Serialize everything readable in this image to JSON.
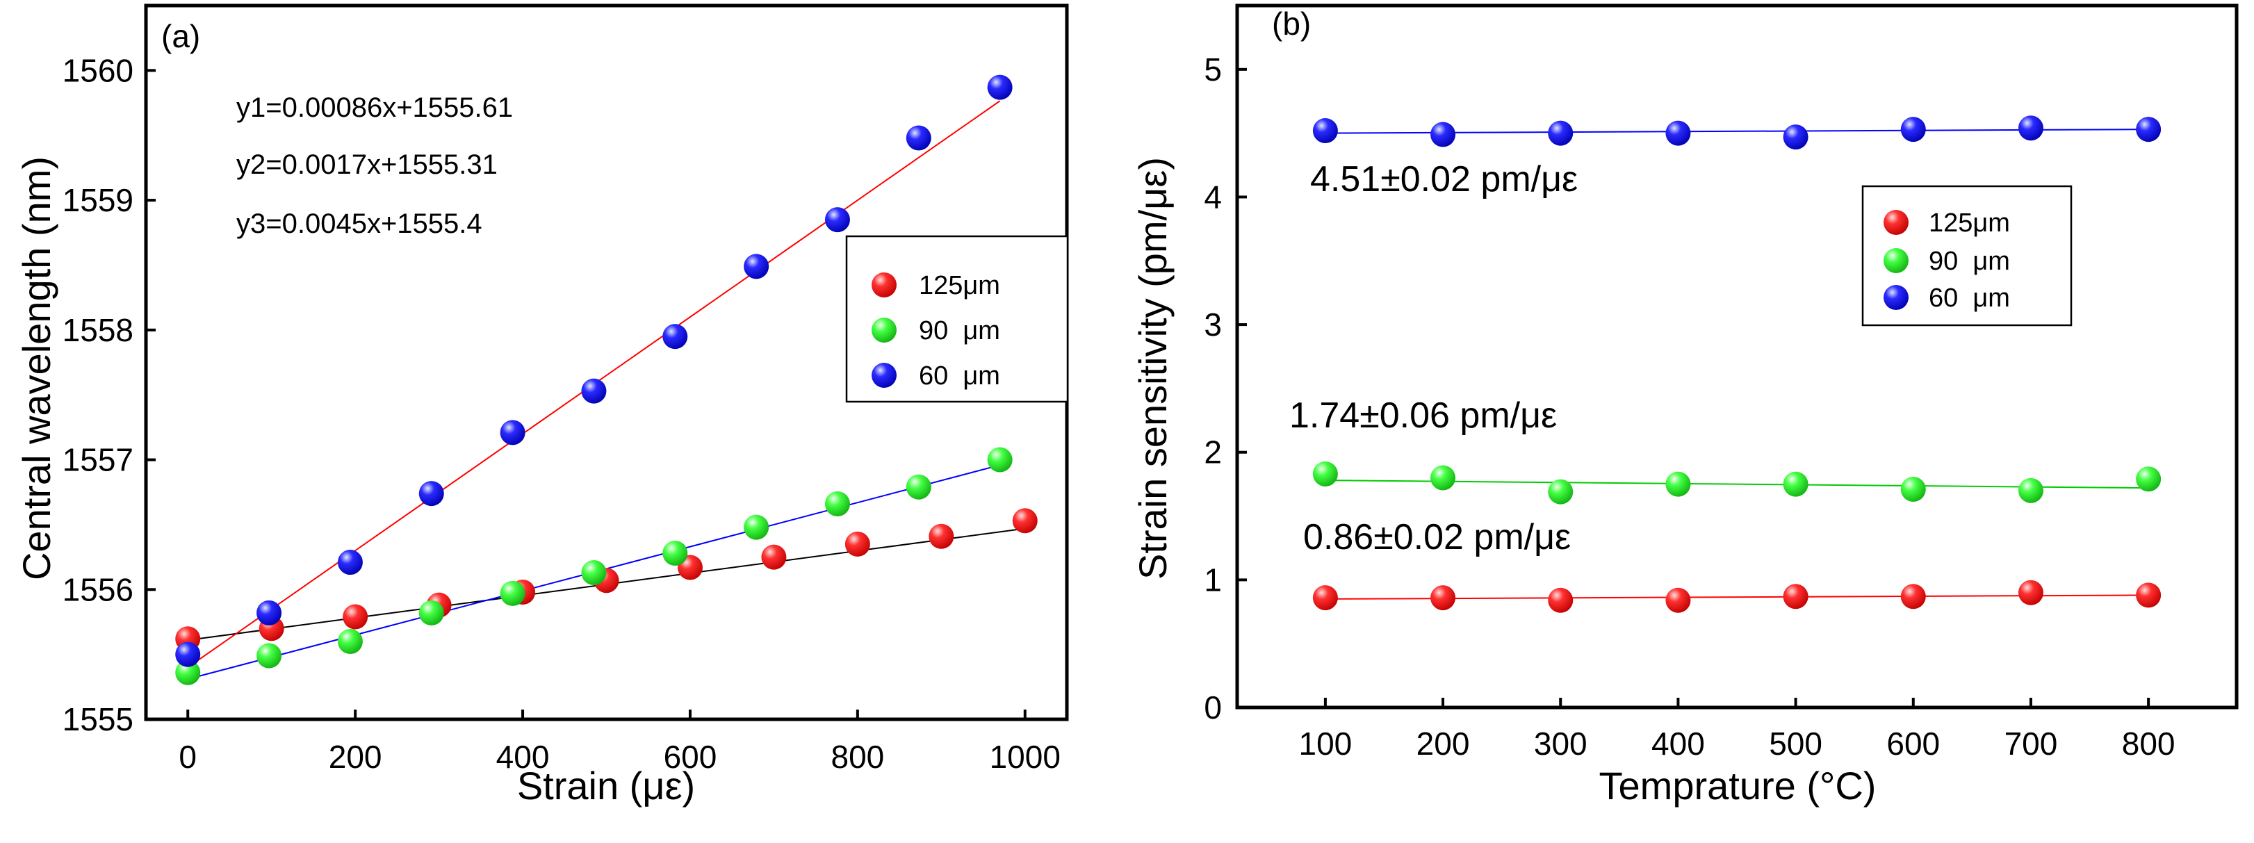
{
  "colors": {
    "125um": "#ff1a1a",
    "90um": "#22ee22",
    "60um": "#1a1aff"
  },
  "chart_data": [
    {
      "panel": "(a)",
      "type": "scatter",
      "xlabel": "Strain (με)",
      "ylabel": "Central wavelength (nm)",
      "xlim": [
        -50,
        1050
      ],
      "ylim": [
        1555,
        1560.5
      ],
      "xticks": [
        0,
        200,
        400,
        600,
        800,
        1000
      ],
      "yticks": [
        1555,
        1556,
        1557,
        1558,
        1559,
        1560
      ],
      "equations": [
        "y1=0.00086x+1555.61",
        "y2=0.0017x+1555.31",
        "y3=0.0045x+1555.4"
      ],
      "legend": {
        "placement": "right",
        "entries": [
          "125μm",
          "90  μm",
          "60  μm"
        ]
      },
      "series": [
        {
          "name": "125μm",
          "color_key": "125um",
          "fit": {
            "slope": 0.00086,
            "intercept": 1555.61,
            "color": "#000000",
            "x_range": [
              0,
              1000
            ]
          },
          "points": [
            [
              0,
              1555.62
            ],
            [
              100,
              1555.7
            ],
            [
              200,
              1555.79
            ],
            [
              300,
              1555.88
            ],
            [
              400,
              1555.98
            ],
            [
              500,
              1556.07
            ],
            [
              600,
              1556.17
            ],
            [
              700,
              1556.25
            ],
            [
              800,
              1556.35
            ],
            [
              900,
              1556.41
            ],
            [
              1000,
              1556.53
            ]
          ]
        },
        {
          "name": "90  μm",
          "color_key": "90um",
          "fit": {
            "slope": 0.0017,
            "intercept": 1555.31,
            "color": "#0000ff",
            "x_range": [
              0,
              970
            ]
          },
          "points": [
            [
              0,
              1555.36
            ],
            [
              97,
              1555.49
            ],
            [
              194,
              1555.6
            ],
            [
              291,
              1555.82
            ],
            [
              388,
              1555.97
            ],
            [
              485,
              1556.13
            ],
            [
              582,
              1556.28
            ],
            [
              679,
              1556.48
            ],
            [
              776,
              1556.66
            ],
            [
              873,
              1556.79
            ],
            [
              970,
              1557.0
            ]
          ]
        },
        {
          "name": "60  μm",
          "color_key": "60um",
          "fit": {
            "slope": 0.0045,
            "intercept": 1555.4,
            "color": "#ff0000",
            "x_range": [
              0,
              970
            ]
          },
          "points": [
            [
              0,
              1555.5
            ],
            [
              97,
              1555.82
            ],
            [
              194,
              1556.21
            ],
            [
              291,
              1556.74
            ],
            [
              388,
              1557.21
            ],
            [
              485,
              1557.53
            ],
            [
              582,
              1557.95
            ],
            [
              679,
              1558.49
            ],
            [
              776,
              1558.85
            ],
            [
              873,
              1559.48
            ],
            [
              970,
              1559.87
            ]
          ]
        }
      ]
    },
    {
      "panel": "(b)",
      "type": "scatter",
      "xlabel": "Temprature (°C)",
      "ylabel": "Strain sensitivity (pm/με)",
      "xlim": [
        25,
        875
      ],
      "ylim": [
        0,
        5.5
      ],
      "xticks": [
        100,
        200,
        300,
        400,
        500,
        600,
        700,
        800
      ],
      "yticks": [
        0,
        1,
        2,
        3,
        4,
        5
      ],
      "annotations": [
        "4.51±0.02 pm/με",
        "1.74±0.06 pm/με",
        "0.86±0.02 pm/με"
      ],
      "legend": {
        "placement": "right",
        "entries": [
          "125μm",
          "90  μm",
          "60  μm"
        ]
      },
      "series": [
        {
          "name": "125μm",
          "color_key": "125um",
          "fit": {
            "start": 0.85,
            "end": 0.88,
            "color": "#ff0000"
          },
          "points": [
            [
              100,
              0.86
            ],
            [
              200,
              0.86
            ],
            [
              300,
              0.84
            ],
            [
              400,
              0.84
            ],
            [
              500,
              0.87
            ],
            [
              600,
              0.87
            ],
            [
              700,
              0.9
            ],
            [
              800,
              0.88
            ]
          ]
        },
        {
          "name": "90  μm",
          "color_key": "90um",
          "fit": {
            "start": 1.78,
            "end": 1.72,
            "color": "#00cc00"
          },
          "points": [
            [
              100,
              1.83
            ],
            [
              200,
              1.8
            ],
            [
              300,
              1.69
            ],
            [
              400,
              1.75
            ],
            [
              500,
              1.75
            ],
            [
              600,
              1.71
            ],
            [
              700,
              1.7
            ],
            [
              800,
              1.79
            ]
          ]
        },
        {
          "name": "60  μm",
          "color_key": "60um",
          "fit": {
            "start": 4.5,
            "end": 4.53,
            "color": "#0000ff"
          },
          "points": [
            [
              100,
              4.52
            ],
            [
              200,
              4.49
            ],
            [
              300,
              4.5
            ],
            [
              400,
              4.5
            ],
            [
              500,
              4.47
            ],
            [
              600,
              4.53
            ],
            [
              700,
              4.54
            ],
            [
              800,
              4.53
            ]
          ]
        }
      ]
    }
  ]
}
